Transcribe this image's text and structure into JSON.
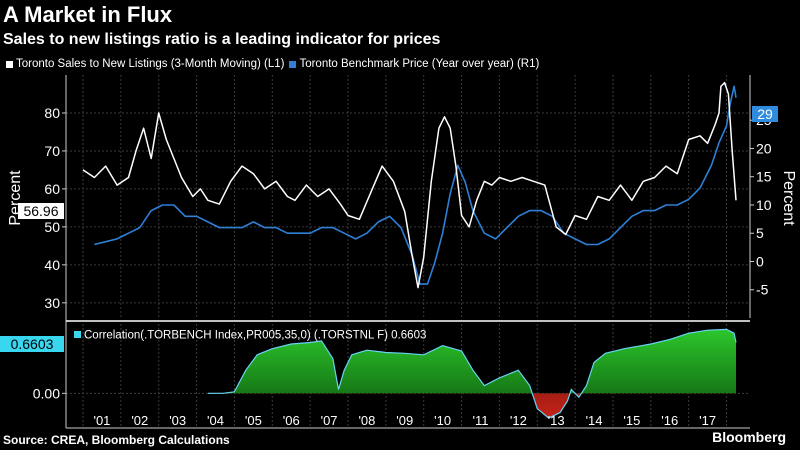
{
  "header": {
    "title": "A Market in Flux",
    "subtitle": "Sales to new listings ratio is a leading indicator for prices"
  },
  "legend": {
    "series1": "Toronto Sales to New Listings (3-Month Moving) (L1)",
    "series2": "Toronto Benchmark Price (Year over year) (R1)"
  },
  "footer": {
    "source": "Source: CREA, Bloomberg Calculations",
    "brand": "Bloomberg"
  },
  "colors": {
    "background": "#000000",
    "sales_line": "#ffffff",
    "price_line": "#2f7fd6",
    "badge_blue": "#2f8be0",
    "corr_positive": "#1ea81e",
    "corr_negative": "#b01c14",
    "corr_line": "#67d4f2",
    "corr_badge": "#39d6f0",
    "grid": "#3b3b3b"
  },
  "chart_data": [
    {
      "type": "line",
      "title": "A Market in Flux",
      "subtitle": "Sales to new listings ratio is a leading indicator for prices",
      "ylabel_left": "Percent",
      "ylabel_right": "Percent",
      "ylim_left": [
        26,
        90
      ],
      "ylim_right": [
        -10,
        33
      ],
      "yticks_left": [
        30,
        40,
        50,
        60,
        70,
        80
      ],
      "yticks_right": [
        -5,
        0,
        5,
        10,
        15,
        20,
        25
      ],
      "x_tick_labels": [
        "'01",
        "'02",
        "'03",
        "'04",
        "'05",
        "'06",
        "'07",
        "'08",
        "'09",
        "'10",
        "'11",
        "'12",
        "'13",
        "'14",
        "'15",
        "'16",
        "'17"
      ],
      "last_value_labels": {
        "left": "56.96",
        "right": "29"
      },
      "grid": true,
      "series": [
        {
          "name": "Toronto Sales to New Listings (3-Month Moving) (L1)",
          "axis": "left",
          "x": [
            2000.0,
            2000.3,
            2000.6,
            2000.9,
            2001.2,
            2001.4,
            2001.6,
            2001.8,
            2002.0,
            2002.2,
            2002.4,
            2002.6,
            2002.9,
            2003.1,
            2003.3,
            2003.6,
            2003.9,
            2004.2,
            2004.5,
            2004.8,
            2005.1,
            2005.4,
            2005.6,
            2005.9,
            2006.2,
            2006.5,
            2006.8,
            2007.0,
            2007.3,
            2007.6,
            2007.9,
            2008.2,
            2008.5,
            2008.7,
            2008.85,
            2009.0,
            2009.2,
            2009.4,
            2009.55,
            2009.7,
            2009.85,
            2010.0,
            2010.2,
            2010.4,
            2010.6,
            2010.8,
            2011.0,
            2011.3,
            2011.6,
            2011.9,
            2012.2,
            2012.5,
            2012.75,
            2013.0,
            2013.3,
            2013.6,
            2013.9,
            2014.2,
            2014.5,
            2014.8,
            2015.1,
            2015.4,
            2015.7,
            2016.0,
            2016.3,
            2016.5,
            2016.7,
            2016.8,
            2016.85,
            2016.95,
            2017.05,
            2017.15,
            2017.25
          ],
          "y": [
            65,
            63,
            66,
            61,
            63,
            70,
            76,
            68,
            80,
            73,
            68,
            63,
            58,
            60,
            57,
            56,
            62,
            66,
            64,
            60,
            62,
            58,
            57,
            61,
            58,
            60,
            56,
            53,
            52,
            59,
            66,
            62,
            54,
            42,
            34,
            42,
            62,
            76,
            79,
            76,
            66,
            53,
            50,
            57,
            62,
            61,
            63,
            62,
            63,
            62,
            61,
            50,
            48,
            53,
            52,
            58,
            57,
            61,
            57,
            62,
            63,
            66,
            64,
            73,
            74,
            72,
            77,
            80,
            87,
            88,
            85,
            70,
            57
          ]
        },
        {
          "name": "Toronto Benchmark Price (Year over year) (R1)",
          "axis": "right",
          "x": [
            2000.3,
            2000.6,
            2000.9,
            2001.2,
            2001.5,
            2001.8,
            2002.1,
            2002.4,
            2002.7,
            2003.0,
            2003.3,
            2003.6,
            2003.9,
            2004.2,
            2004.5,
            2004.8,
            2005.1,
            2005.4,
            2005.7,
            2006.0,
            2006.3,
            2006.6,
            2006.9,
            2007.2,
            2007.5,
            2007.8,
            2008.1,
            2008.4,
            2008.7,
            2008.9,
            2009.1,
            2009.3,
            2009.5,
            2009.7,
            2009.9,
            2010.1,
            2010.3,
            2010.6,
            2010.9,
            2011.2,
            2011.5,
            2011.8,
            2012.1,
            2012.4,
            2012.7,
            2013.0,
            2013.3,
            2013.6,
            2013.9,
            2014.2,
            2014.5,
            2014.8,
            2015.1,
            2015.4,
            2015.7,
            2016.0,
            2016.3,
            2016.6,
            2016.8,
            2017.0,
            2017.1,
            2017.2,
            2017.25
          ],
          "y": [
            3,
            3.5,
            4,
            5,
            6,
            9,
            10,
            10,
            8,
            8,
            7,
            6,
            6,
            6,
            7,
            6,
            6,
            5,
            5,
            5,
            6,
            6,
            5,
            4,
            5,
            7,
            8,
            6,
            1,
            -4,
            -4,
            0,
            5,
            12,
            17,
            14,
            9,
            5,
            4,
            6,
            8,
            9,
            9,
            8,
            5,
            4,
            3,
            3,
            4,
            6,
            8,
            9,
            9,
            10,
            10,
            11,
            13,
            17,
            21,
            24,
            28,
            31,
            29
          ]
        }
      ]
    },
    {
      "type": "area",
      "title": "Correlation(.TORBENCH Index,PR005,35,0) (.TORSTNL F) 0.6603",
      "last_value_label": "0.6603",
      "yticks": [
        0.0
      ],
      "ylim": [
        -0.45,
        0.9
      ],
      "x": [
        2003.3,
        2003.7,
        2004.0,
        2004.3,
        2004.6,
        2005.0,
        2005.5,
        2006.0,
        2006.3,
        2006.6,
        2006.75,
        2006.9,
        2007.1,
        2007.5,
        2008.0,
        2008.5,
        2009.0,
        2009.5,
        2010.0,
        2010.3,
        2010.6,
        2011.0,
        2011.5,
        2011.8,
        2011.9,
        2012.0,
        2012.3,
        2012.6,
        2012.8,
        2012.9,
        2013.1,
        2013.3,
        2013.5,
        2013.8,
        2014.3,
        2015.0,
        2015.5,
        2016.0,
        2016.5,
        2017.0,
        2017.2,
        2017.25
      ],
      "y": [
        0.0,
        0.0,
        0.02,
        0.3,
        0.5,
        0.58,
        0.64,
        0.66,
        0.68,
        0.45,
        0.05,
        0.3,
        0.5,
        0.56,
        0.53,
        0.52,
        0.5,
        0.62,
        0.55,
        0.3,
        0.1,
        0.2,
        0.3,
        0.1,
        -0.05,
        -0.2,
        -0.32,
        -0.25,
        -0.1,
        0.05,
        -0.05,
        0.1,
        0.4,
        0.52,
        0.58,
        0.64,
        0.7,
        0.78,
        0.82,
        0.83,
        0.78,
        0.66
      ]
    }
  ]
}
